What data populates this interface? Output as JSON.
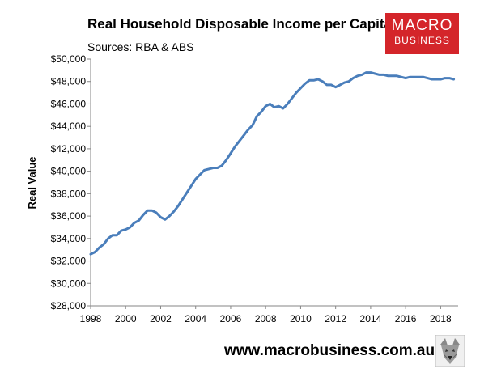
{
  "header": {
    "title": "Real Household Disposable Income per Capita",
    "subtitle": "Sources: RBA & ABS"
  },
  "brand": {
    "line1": "MACRO",
    "line2": "BUSINESS",
    "color": "#d4252a"
  },
  "footer": {
    "url": "www.macrobusiness.com.au",
    "mascot_icon": "wolf-logo-icon"
  },
  "colors": {
    "series": "#4a7ebb",
    "axis": "#868686"
  },
  "chart_data": {
    "type": "line",
    "title": "Real Household Disposable Income per Capita",
    "subtitle": "Sources: RBA & ABS",
    "xlabel": "",
    "ylabel": "Real Value",
    "xlim": [
      1998,
      2019
    ],
    "ylim": [
      28000,
      50000
    ],
    "grid": false,
    "x_ticks": [
      1998,
      2000,
      2002,
      2004,
      2006,
      2008,
      2010,
      2012,
      2014,
      2016,
      2018
    ],
    "x_tick_labels": [
      "1998",
      "2000",
      "2002",
      "2004",
      "2006",
      "2008",
      "2010",
      "2012",
      "2014",
      "2016",
      "2018"
    ],
    "y_ticks": [
      28000,
      30000,
      32000,
      34000,
      36000,
      38000,
      40000,
      42000,
      44000,
      46000,
      48000,
      50000
    ],
    "y_tick_labels": [
      "$28,000",
      "$30,000",
      "$32,000",
      "$34,000",
      "$36,000",
      "$38,000",
      "$40,000",
      "$42,000",
      "$44,000",
      "$46,000",
      "$48,000",
      "$50,000"
    ],
    "series": [
      {
        "color": "#4a7ebb",
        "x": [
          1998.0,
          1998.25,
          1998.5,
          1998.75,
          1999.0,
          1999.25,
          1999.5,
          1999.75,
          2000.0,
          2000.25,
          2000.5,
          2000.75,
          2001.0,
          2001.25,
          2001.5,
          2001.75,
          2002.0,
          2002.25,
          2002.5,
          2002.75,
          2003.0,
          2003.25,
          2003.5,
          2003.75,
          2004.0,
          2004.25,
          2004.5,
          2004.75,
          2005.0,
          2005.25,
          2005.5,
          2005.75,
          2006.0,
          2006.25,
          2006.5,
          2006.75,
          2007.0,
          2007.25,
          2007.5,
          2007.75,
          2008.0,
          2008.25,
          2008.5,
          2008.75,
          2009.0,
          2009.25,
          2009.5,
          2009.75,
          2010.0,
          2010.25,
          2010.5,
          2010.75,
          2011.0,
          2011.25,
          2011.5,
          2011.75,
          2012.0,
          2012.25,
          2012.5,
          2012.75,
          2013.0,
          2013.25,
          2013.5,
          2013.75,
          2014.0,
          2014.25,
          2014.5,
          2014.75,
          2015.0,
          2015.25,
          2015.5,
          2015.75,
          2016.0,
          2016.25,
          2016.5,
          2016.75,
          2017.0,
          2017.25,
          2017.5,
          2017.75,
          2018.0,
          2018.25,
          2018.5,
          2018.75
        ],
        "values": [
          32600,
          32800,
          33200,
          33500,
          34000,
          34300,
          34300,
          34700,
          34800,
          35000,
          35400,
          35600,
          36100,
          36500,
          36500,
          36300,
          35900,
          35700,
          36000,
          36400,
          36900,
          37500,
          38100,
          38700,
          39300,
          39700,
          40100,
          40200,
          40300,
          40300,
          40500,
          41000,
          41600,
          42200,
          42700,
          43200,
          43700,
          44100,
          44900,
          45300,
          45800,
          46000,
          45700,
          45800,
          45600,
          46000,
          46500,
          47000,
          47400,
          47800,
          48100,
          48100,
          48200,
          48000,
          47700,
          47700,
          47500,
          47700,
          47900,
          48000,
          48300,
          48500,
          48600,
          48800,
          48800,
          48700,
          48600,
          48600,
          48500,
          48500,
          48500,
          48400,
          48300,
          48400,
          48400,
          48400,
          48400,
          48300,
          48200,
          48200,
          48200,
          48300,
          48300,
          48200
        ]
      }
    ]
  }
}
